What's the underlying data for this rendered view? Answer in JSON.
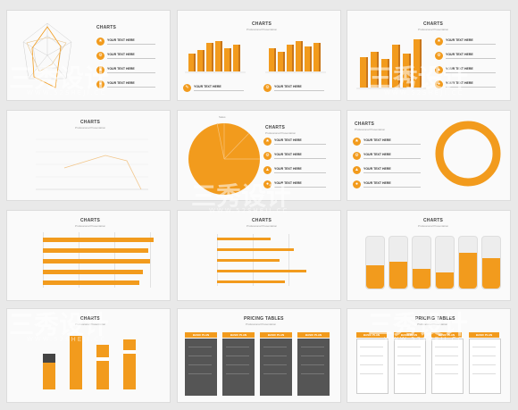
{
  "common": {
    "charts_title": "CHARTS",
    "subtitle": "Professional Presentation",
    "item_heading": "YOUR TEXT HERE",
    "pie_label": "Sales",
    "pricing_title": "PRICING TABLES",
    "plan_label": "BASIC PLAN",
    "watermark_cn": "三秀设计",
    "watermark_en": "WWW.52SHEJI.CC"
  },
  "colors": {
    "accent": "#f29b1d",
    "accent_dark": "#d9821a",
    "dark_panel": "#555555",
    "slide_bg": "#fafafa"
  }
}
